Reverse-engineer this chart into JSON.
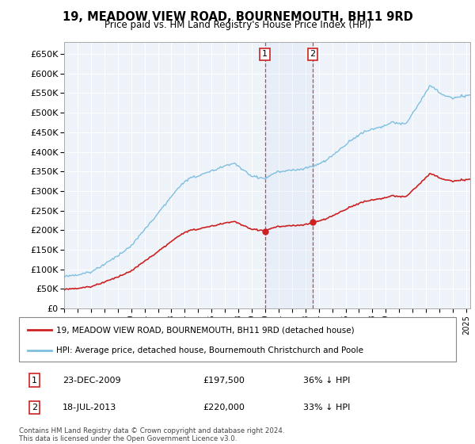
{
  "title": "19, MEADOW VIEW ROAD, BOURNEMOUTH, BH11 9RD",
  "subtitle": "Price paid vs. HM Land Registry's House Price Index (HPI)",
  "legend_line1": "19, MEADOW VIEW ROAD, BOURNEMOUTH, BH11 9RD (detached house)",
  "legend_line2": "HPI: Average price, detached house, Bournemouth Christchurch and Poole",
  "footnote": "Contains HM Land Registry data © Crown copyright and database right 2024.\nThis data is licensed under the Open Government Licence v3.0.",
  "transaction1_date": "23-DEC-2009",
  "transaction1_price": "£197,500",
  "transaction1_hpi": "36% ↓ HPI",
  "transaction2_date": "18-JUL-2013",
  "transaction2_price": "£220,000",
  "transaction2_hpi": "33% ↓ HPI",
  "ylim_min": 0,
  "ylim_max": 680000,
  "yticks": [
    0,
    50000,
    100000,
    150000,
    200000,
    250000,
    300000,
    350000,
    400000,
    450000,
    500000,
    550000,
    600000,
    650000
  ],
  "hpi_color": "#7fbfdf",
  "price_color": "#cc2222",
  "transaction_color": "#cc2222",
  "background_color": "#eef3fa",
  "grid_color": "#ffffff",
  "transaction1_x": 2009.98,
  "transaction2_x": 2013.54,
  "transaction1_y": 197500,
  "transaction2_y": 220000,
  "vline1_x": 2009.98,
  "vline2_x": 2013.54,
  "xlim_min": 1995,
  "xlim_max": 2025.3
}
